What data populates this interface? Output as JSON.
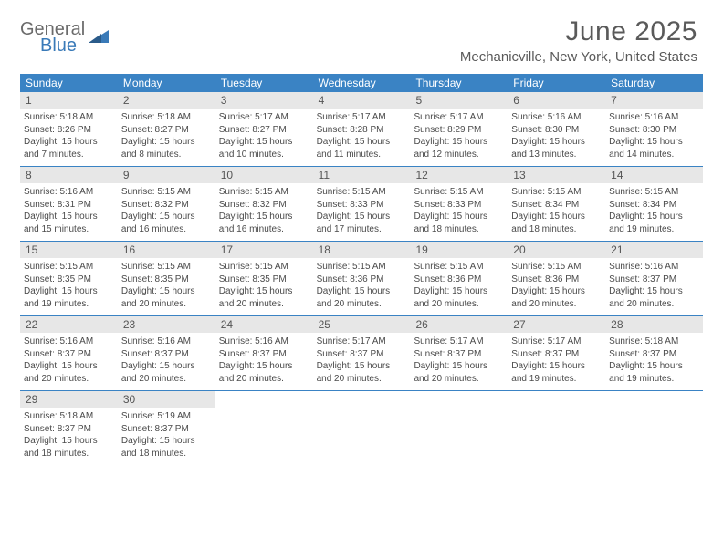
{
  "logo": {
    "line1": "General",
    "line2": "Blue"
  },
  "title": "June 2025",
  "location": "Mechanicville, New York, United States",
  "day_headers": [
    "Sunday",
    "Monday",
    "Tuesday",
    "Wednesday",
    "Thursday",
    "Friday",
    "Saturday"
  ],
  "colors": {
    "header_bg": "#3a83c4",
    "header_text": "#ffffff",
    "daynum_bg": "#e7e7e7",
    "row_border": "#3a83c4",
    "logo_gray": "#6b6b6b",
    "logo_blue": "#3a7ab8"
  },
  "weeks": [
    [
      {
        "n": "1",
        "sr": "Sunrise: 5:18 AM",
        "ss": "Sunset: 8:26 PM",
        "d1": "Daylight: 15 hours",
        "d2": "and 7 minutes."
      },
      {
        "n": "2",
        "sr": "Sunrise: 5:18 AM",
        "ss": "Sunset: 8:27 PM",
        "d1": "Daylight: 15 hours",
        "d2": "and 8 minutes."
      },
      {
        "n": "3",
        "sr": "Sunrise: 5:17 AM",
        "ss": "Sunset: 8:27 PM",
        "d1": "Daylight: 15 hours",
        "d2": "and 10 minutes."
      },
      {
        "n": "4",
        "sr": "Sunrise: 5:17 AM",
        "ss": "Sunset: 8:28 PM",
        "d1": "Daylight: 15 hours",
        "d2": "and 11 minutes."
      },
      {
        "n": "5",
        "sr": "Sunrise: 5:17 AM",
        "ss": "Sunset: 8:29 PM",
        "d1": "Daylight: 15 hours",
        "d2": "and 12 minutes."
      },
      {
        "n": "6",
        "sr": "Sunrise: 5:16 AM",
        "ss": "Sunset: 8:30 PM",
        "d1": "Daylight: 15 hours",
        "d2": "and 13 minutes."
      },
      {
        "n": "7",
        "sr": "Sunrise: 5:16 AM",
        "ss": "Sunset: 8:30 PM",
        "d1": "Daylight: 15 hours",
        "d2": "and 14 minutes."
      }
    ],
    [
      {
        "n": "8",
        "sr": "Sunrise: 5:16 AM",
        "ss": "Sunset: 8:31 PM",
        "d1": "Daylight: 15 hours",
        "d2": "and 15 minutes."
      },
      {
        "n": "9",
        "sr": "Sunrise: 5:15 AM",
        "ss": "Sunset: 8:32 PM",
        "d1": "Daylight: 15 hours",
        "d2": "and 16 minutes."
      },
      {
        "n": "10",
        "sr": "Sunrise: 5:15 AM",
        "ss": "Sunset: 8:32 PM",
        "d1": "Daylight: 15 hours",
        "d2": "and 16 minutes."
      },
      {
        "n": "11",
        "sr": "Sunrise: 5:15 AM",
        "ss": "Sunset: 8:33 PM",
        "d1": "Daylight: 15 hours",
        "d2": "and 17 minutes."
      },
      {
        "n": "12",
        "sr": "Sunrise: 5:15 AM",
        "ss": "Sunset: 8:33 PM",
        "d1": "Daylight: 15 hours",
        "d2": "and 18 minutes."
      },
      {
        "n": "13",
        "sr": "Sunrise: 5:15 AM",
        "ss": "Sunset: 8:34 PM",
        "d1": "Daylight: 15 hours",
        "d2": "and 18 minutes."
      },
      {
        "n": "14",
        "sr": "Sunrise: 5:15 AM",
        "ss": "Sunset: 8:34 PM",
        "d1": "Daylight: 15 hours",
        "d2": "and 19 minutes."
      }
    ],
    [
      {
        "n": "15",
        "sr": "Sunrise: 5:15 AM",
        "ss": "Sunset: 8:35 PM",
        "d1": "Daylight: 15 hours",
        "d2": "and 19 minutes."
      },
      {
        "n": "16",
        "sr": "Sunrise: 5:15 AM",
        "ss": "Sunset: 8:35 PM",
        "d1": "Daylight: 15 hours",
        "d2": "and 20 minutes."
      },
      {
        "n": "17",
        "sr": "Sunrise: 5:15 AM",
        "ss": "Sunset: 8:35 PM",
        "d1": "Daylight: 15 hours",
        "d2": "and 20 minutes."
      },
      {
        "n": "18",
        "sr": "Sunrise: 5:15 AM",
        "ss": "Sunset: 8:36 PM",
        "d1": "Daylight: 15 hours",
        "d2": "and 20 minutes."
      },
      {
        "n": "19",
        "sr": "Sunrise: 5:15 AM",
        "ss": "Sunset: 8:36 PM",
        "d1": "Daylight: 15 hours",
        "d2": "and 20 minutes."
      },
      {
        "n": "20",
        "sr": "Sunrise: 5:15 AM",
        "ss": "Sunset: 8:36 PM",
        "d1": "Daylight: 15 hours",
        "d2": "and 20 minutes."
      },
      {
        "n": "21",
        "sr": "Sunrise: 5:16 AM",
        "ss": "Sunset: 8:37 PM",
        "d1": "Daylight: 15 hours",
        "d2": "and 20 minutes."
      }
    ],
    [
      {
        "n": "22",
        "sr": "Sunrise: 5:16 AM",
        "ss": "Sunset: 8:37 PM",
        "d1": "Daylight: 15 hours",
        "d2": "and 20 minutes."
      },
      {
        "n": "23",
        "sr": "Sunrise: 5:16 AM",
        "ss": "Sunset: 8:37 PM",
        "d1": "Daylight: 15 hours",
        "d2": "and 20 minutes."
      },
      {
        "n": "24",
        "sr": "Sunrise: 5:16 AM",
        "ss": "Sunset: 8:37 PM",
        "d1": "Daylight: 15 hours",
        "d2": "and 20 minutes."
      },
      {
        "n": "25",
        "sr": "Sunrise: 5:17 AM",
        "ss": "Sunset: 8:37 PM",
        "d1": "Daylight: 15 hours",
        "d2": "and 20 minutes."
      },
      {
        "n": "26",
        "sr": "Sunrise: 5:17 AM",
        "ss": "Sunset: 8:37 PM",
        "d1": "Daylight: 15 hours",
        "d2": "and 20 minutes."
      },
      {
        "n": "27",
        "sr": "Sunrise: 5:17 AM",
        "ss": "Sunset: 8:37 PM",
        "d1": "Daylight: 15 hours",
        "d2": "and 19 minutes."
      },
      {
        "n": "28",
        "sr": "Sunrise: 5:18 AM",
        "ss": "Sunset: 8:37 PM",
        "d1": "Daylight: 15 hours",
        "d2": "and 19 minutes."
      }
    ],
    [
      {
        "n": "29",
        "sr": "Sunrise: 5:18 AM",
        "ss": "Sunset: 8:37 PM",
        "d1": "Daylight: 15 hours",
        "d2": "and 18 minutes."
      },
      {
        "n": "30",
        "sr": "Sunrise: 5:19 AM",
        "ss": "Sunset: 8:37 PM",
        "d1": "Daylight: 15 hours",
        "d2": "and 18 minutes."
      },
      null,
      null,
      null,
      null,
      null
    ]
  ]
}
